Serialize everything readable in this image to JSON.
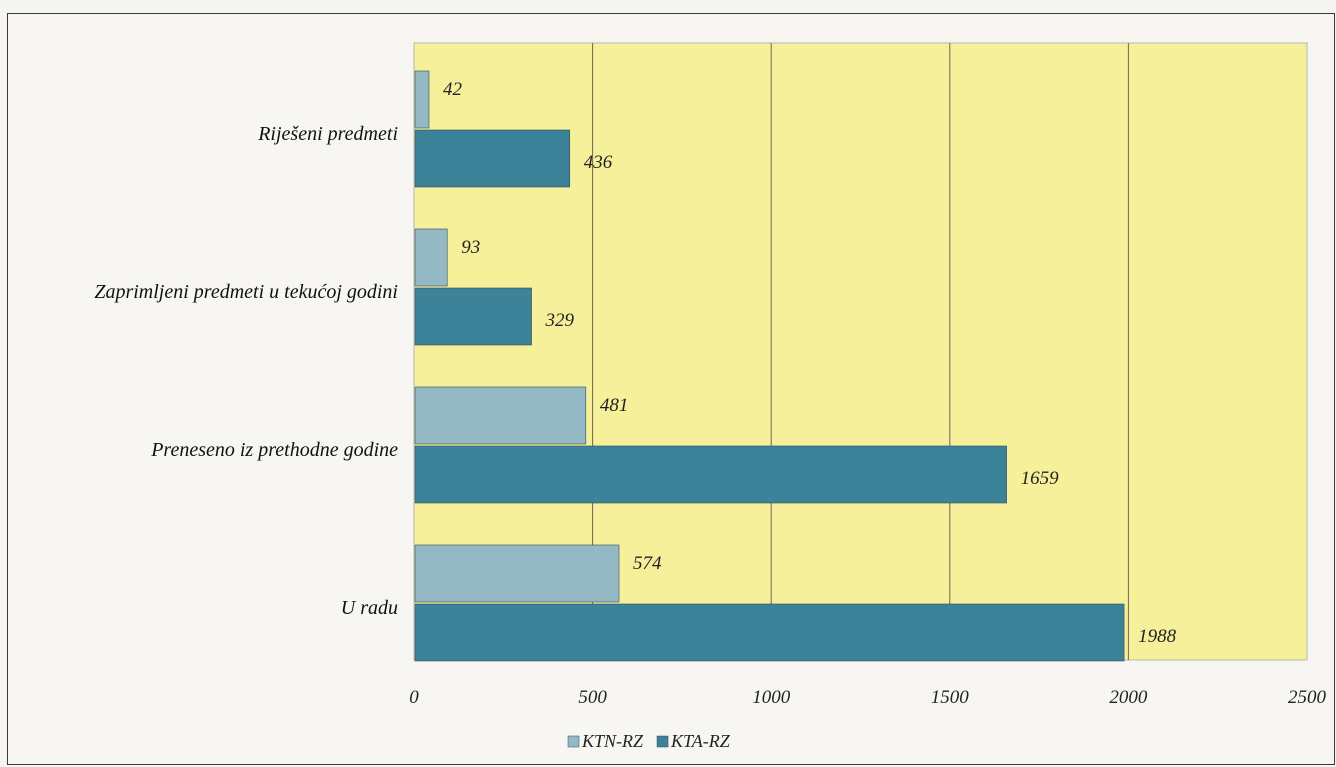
{
  "chart_data": {
    "type": "bar",
    "orientation": "horizontal",
    "categories": [
      "Riješeni predmeti",
      "Zaprimljeni predmeti u tekućoj godini",
      "Preneseno iz prethodne godine",
      "U radu"
    ],
    "series": [
      {
        "name": "KTN-RZ",
        "values": [
          42,
          93,
          481,
          574
        ],
        "color": "#94b9c4"
      },
      {
        "name": "KTA-RZ",
        "values": [
          436,
          329,
          1659,
          1988
        ],
        "color": "#3c8299"
      }
    ],
    "xlim": [
      0,
      2500
    ],
    "xticks": [
      0,
      500,
      1000,
      1500,
      2000,
      2500
    ],
    "grid": true,
    "legend": "bottom",
    "plot_background": "#f7f09a",
    "title": "",
    "xlabel": "",
    "ylabel": ""
  }
}
